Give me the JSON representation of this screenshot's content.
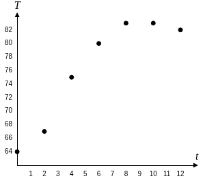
{
  "chart_data": {
    "type": "scatter",
    "x_label": "t",
    "y_label": "T",
    "x": [
      0,
      2,
      4,
      6,
      8,
      10,
      12
    ],
    "values": [
      64,
      67,
      75,
      80,
      83,
      83,
      82
    ],
    "color": "#000000",
    "marker": "circle",
    "xlim": [
      0,
      13
    ],
    "ylim": [
      62,
      84
    ],
    "xticks": [
      1,
      2,
      3,
      4,
      5,
      6,
      7,
      8,
      9,
      10,
      11,
      12
    ],
    "yticks": [
      64,
      66,
      68,
      70,
      72,
      74,
      76,
      78,
      80,
      82
    ],
    "grid": false
  }
}
